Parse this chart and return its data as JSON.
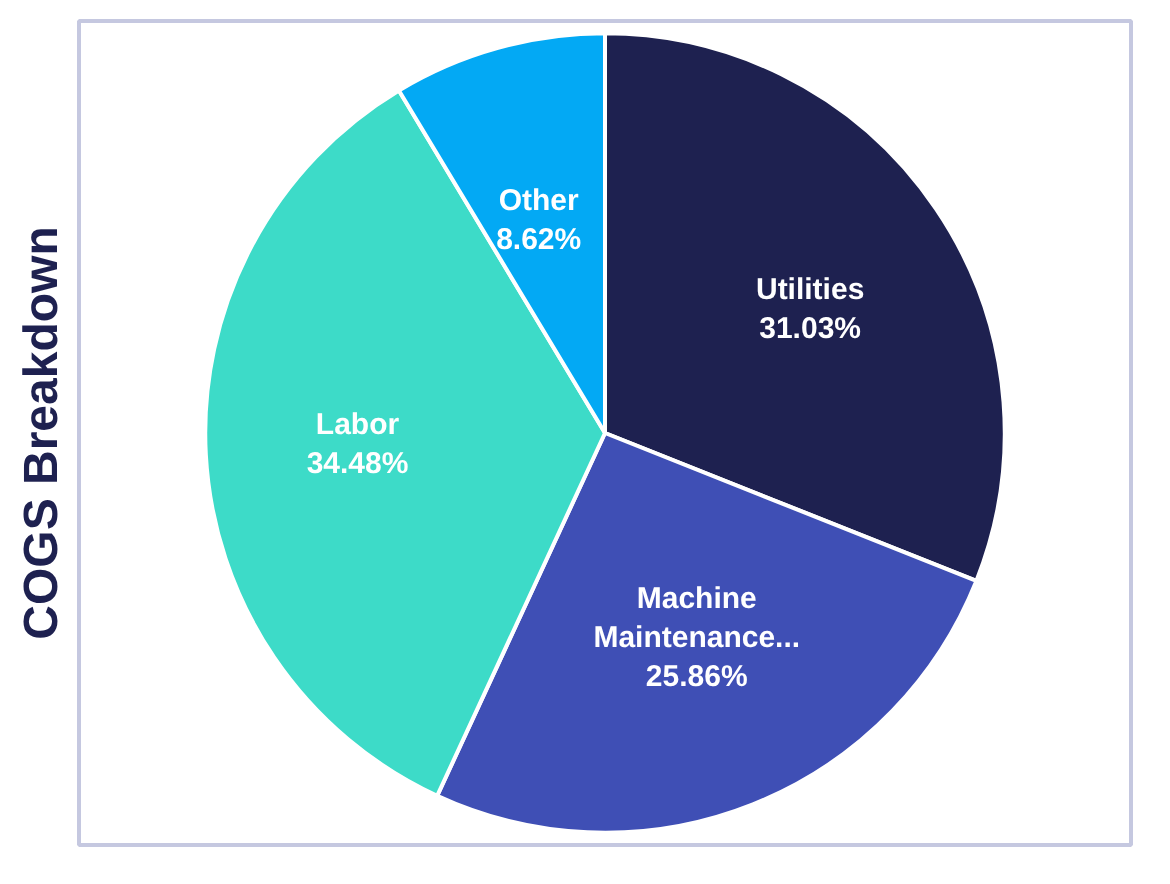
{
  "chart_data": {
    "type": "pie",
    "title": "COGS Breakdown",
    "categories": [
      "Utilities",
      "Machine Maintenance...",
      "Labor",
      "Other"
    ],
    "values": [
      31.03,
      25.86,
      34.48,
      8.62
    ],
    "colors": [
      "#1e2150",
      "#3f4fb5",
      "#3ddbc8",
      "#03a9f4"
    ],
    "value_labels": [
      "31.03%",
      "25.86%",
      "34.48%",
      "8.62%"
    ]
  }
}
